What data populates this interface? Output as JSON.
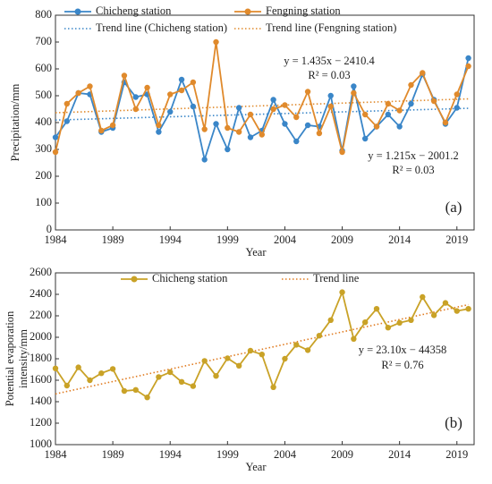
{
  "chart_data": [
    {
      "type": "line",
      "xlabel": "Year",
      "ylabel": "Precipitation/mm",
      "panel": "(a)",
      "x": [
        1984,
        1985,
        1986,
        1987,
        1988,
        1989,
        1990,
        1991,
        1992,
        1993,
        1994,
        1995,
        1996,
        1997,
        1998,
        1999,
        2000,
        2001,
        2002,
        2003,
        2004,
        2005,
        2006,
        2007,
        2008,
        2009,
        2010,
        2011,
        2012,
        2013,
        2014,
        2015,
        2016,
        2017,
        2018,
        2019,
        2020
      ],
      "series": [
        {
          "name": "Chicheng station",
          "color": "#3a86c8",
          "values": [
            345,
            405,
            510,
            505,
            365,
            380,
            550,
            495,
            505,
            365,
            440,
            560,
            460,
            262,
            395,
            300,
            455,
            345,
            370,
            485,
            395,
            330,
            390,
            385,
            500,
            295,
            535,
            340,
            385,
            430,
            385,
            470,
            580,
            485,
            395,
            455,
            640
          ]
        },
        {
          "name": "Fengning station",
          "color": "#e08a2c",
          "values": [
            290,
            470,
            510,
            535,
            370,
            390,
            575,
            450,
            530,
            390,
            505,
            520,
            550,
            375,
            700,
            380,
            365,
            430,
            355,
            450,
            465,
            420,
            515,
            360,
            460,
            290,
            510,
            430,
            385,
            470,
            445,
            540,
            585,
            480,
            400,
            505,
            610
          ]
        }
      ],
      "trends": [
        {
          "name": "Trend line (Chicheng station)",
          "color": "#3a86c8",
          "x": [
            1984,
            2020
          ],
          "values": [
            409.4,
            453.1
          ]
        },
        {
          "name": "Trend line (Fengning station)",
          "color": "#e08a2c",
          "x": [
            1984,
            2020
          ],
          "values": [
            436.6,
            488.3
          ]
        }
      ],
      "annotations": [
        "y = 1.435x − 2410.4",
        "R² = 0.03",
        "y = 1.215x − 2001.2",
        "R² = 0.03"
      ],
      "xlim": [
        1984,
        2020.5
      ],
      "xticks": [
        1984,
        1989,
        1994,
        1999,
        2004,
        2009,
        2014,
        2019
      ],
      "ylim": [
        0,
        800
      ],
      "yticks": [
        0,
        100,
        200,
        300,
        400,
        500,
        600,
        700,
        800
      ]
    },
    {
      "type": "line",
      "xlabel": "Year",
      "ylabel": [
        "Potential evaporation",
        "intensity/mm"
      ],
      "panel": "(b)",
      "x": [
        1984,
        1985,
        1986,
        1987,
        1988,
        1989,
        1990,
        1991,
        1992,
        1993,
        1994,
        1995,
        1996,
        1997,
        1998,
        1999,
        2000,
        2001,
        2002,
        2003,
        2004,
        2005,
        2006,
        2007,
        2008,
        2009,
        2010,
        2011,
        2012,
        2013,
        2014,
        2015,
        2016,
        2017,
        2018,
        2019,
        2020
      ],
      "series": [
        {
          "name": "Chicheng station",
          "color": "#c9a227",
          "values": [
            1710,
            1550,
            1720,
            1600,
            1665,
            1705,
            1500,
            1510,
            1440,
            1630,
            1675,
            1585,
            1545,
            1780,
            1640,
            1805,
            1735,
            1875,
            1840,
            1535,
            1800,
            1930,
            1880,
            2015,
            2160,
            2420,
            1985,
            2140,
            2265,
            2090,
            2135,
            2160,
            2375,
            2205,
            2320,
            2245,
            2265
          ]
        }
      ],
      "trends": [
        {
          "name": "Trend line",
          "color": "#e07b20",
          "x": [
            1984,
            2020
          ],
          "values": [
            1472.4,
            2304
          ]
        }
      ],
      "annotations": [
        "y = 23.10x − 44358",
        "R² = 0.76"
      ],
      "xlim": [
        1984,
        2020.5
      ],
      "xticks": [
        1984,
        1989,
        1994,
        1999,
        2004,
        2009,
        2014,
        2019
      ],
      "ylim": [
        1000,
        2600
      ],
      "yticks": [
        1000,
        1200,
        1400,
        1600,
        1800,
        2000,
        2200,
        2400,
        2600
      ]
    }
  ]
}
